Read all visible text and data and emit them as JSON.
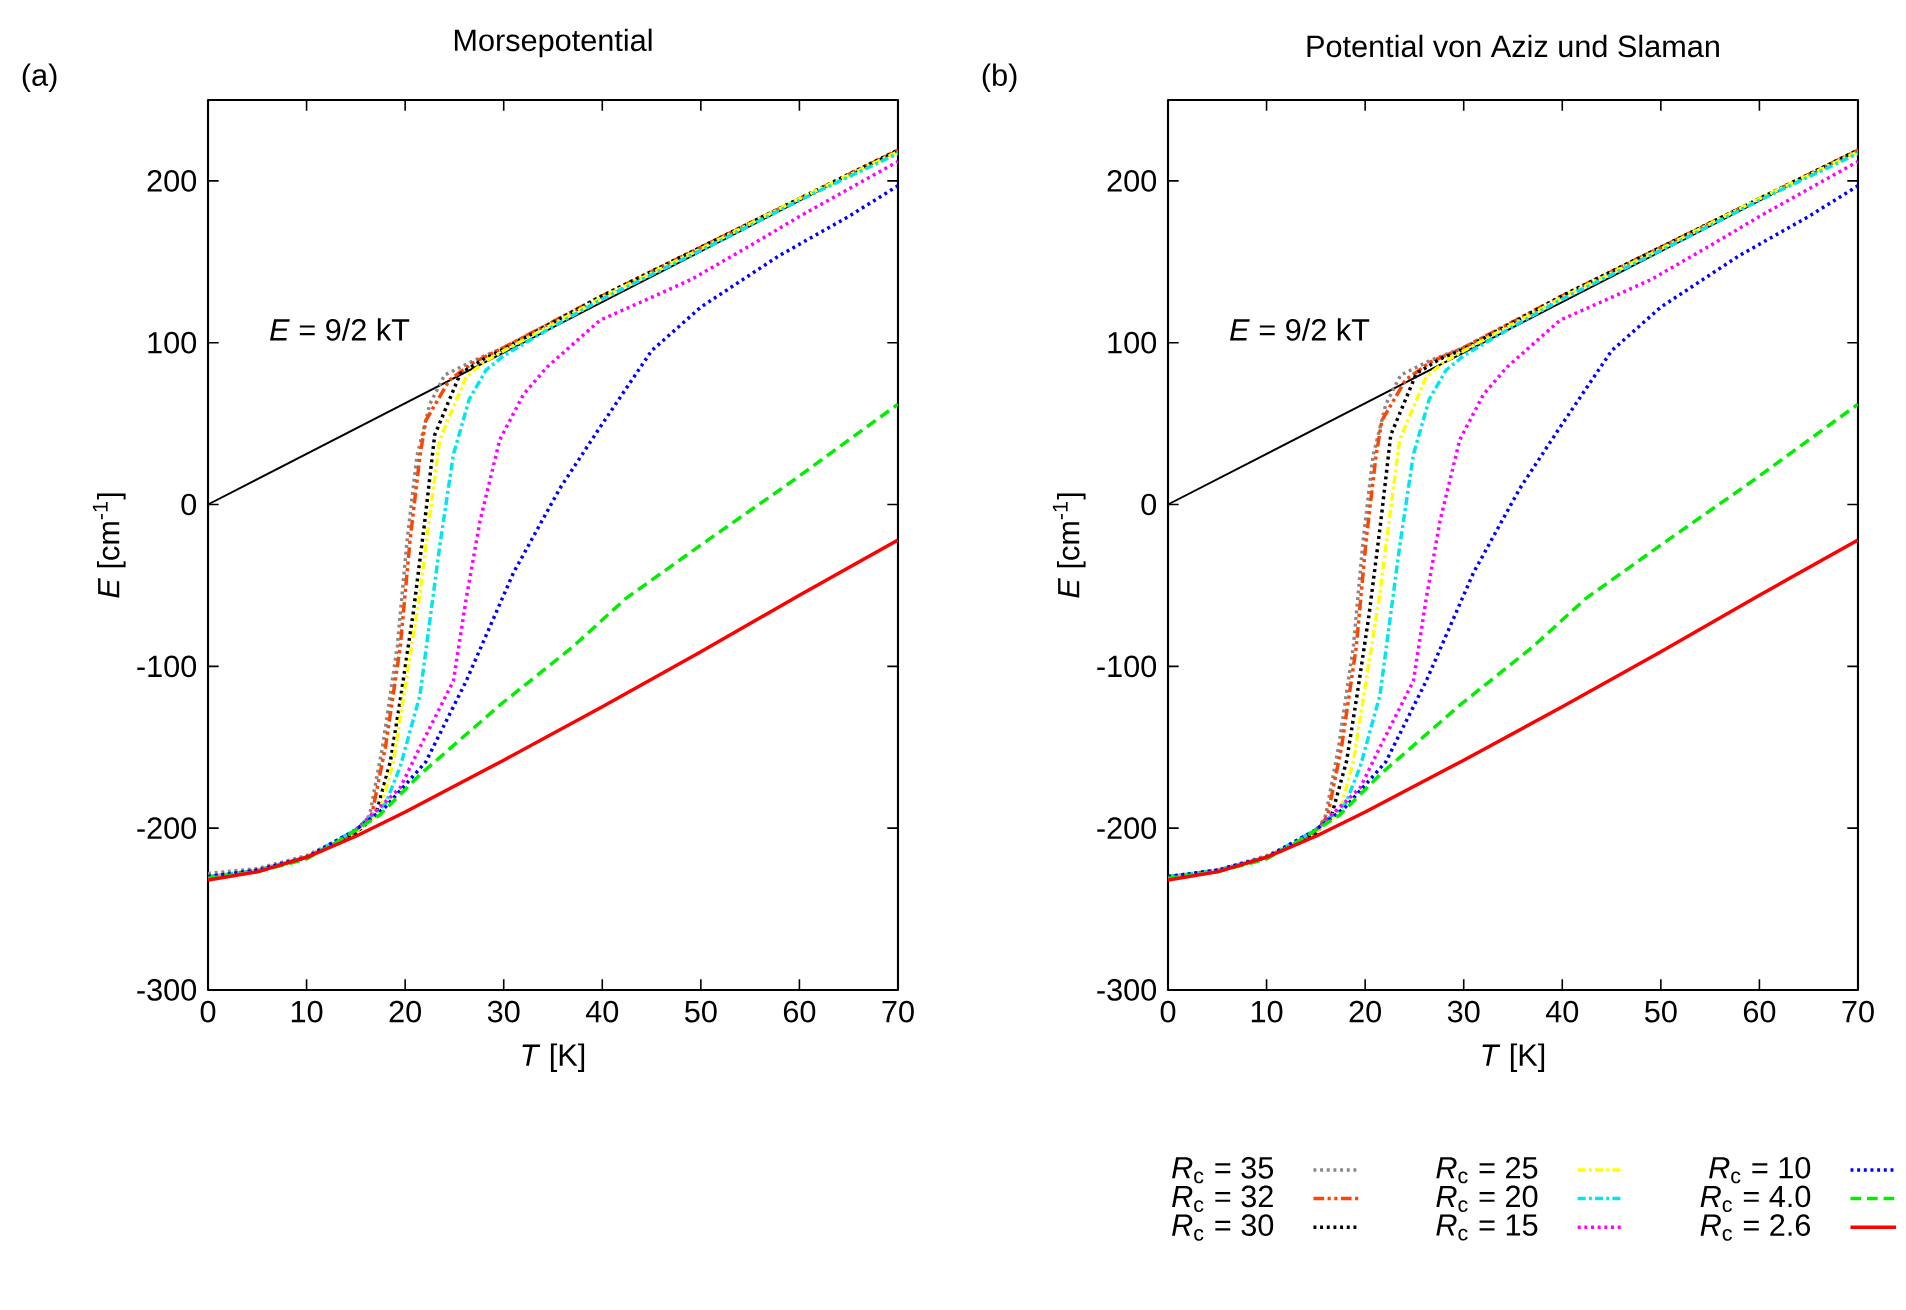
{
  "chart_data": [
    {
      "type": "line",
      "title": "Morsepotential",
      "xlabel": "*T* [K]",
      "ylabel": "*E* [cm$^{-1}$]",
      "xlim": [
        0,
        70
      ],
      "ylim": [
        -300,
        250
      ],
      "xticks": [
        0,
        10,
        20,
        30,
        40,
        50,
        60,
        70
      ],
      "yticks": [
        -300,
        -200,
        -100,
        0,
        100,
        200
      ],
      "annotations": [
        "(a)",
        {
          "text": "*E* = 9/2 kT",
          "x": 20,
          "y": 63
        }
      ],
      "legend": false,
      "grid": false,
      "marker": "none",
      "series": [
        {
          "color": "#000000",
          "line_style": "solid",
          "x": [
            0,
            70
          ],
          "values": [
            0,
            219
          ]
        },
        {
          "color": "#888888",
          "line_style": "dotted",
          "x": [
            0,
            5,
            10,
            15,
            16.4,
            17.7,
            19.2,
            20.2,
            21.2,
            22.5,
            24,
            27,
            30,
            40,
            50,
            60,
            70
          ],
          "values": [
            -228,
            -225,
            -217,
            -202,
            -192,
            -150,
            -88,
            -22,
            30,
            62,
            80,
            89,
            97,
            129,
            159,
            189,
            219
          ]
        },
        {
          "color": "#ff4500",
          "line_style": "dashdotdot",
          "x": [
            0,
            5,
            10,
            15,
            16.6,
            18,
            19.5,
            20.5,
            21.5,
            22.1,
            24.5,
            27,
            30,
            40,
            50,
            60,
            70
          ],
          "values": [
            -230,
            -226,
            -218,
            -203,
            -192,
            -150,
            -88,
            -22,
            30,
            52,
            77,
            88,
            97,
            129,
            159,
            189,
            219
          ]
        },
        {
          "color": "#000000",
          "line_style": "dotted",
          "x": [
            0,
            5,
            10,
            15,
            17,
            18.5,
            19.5,
            20.8,
            22,
            23,
            25.6,
            28,
            30,
            40,
            50,
            60,
            70
          ],
          "values": [
            -230,
            -226,
            -218,
            -203,
            -192,
            -159,
            -121,
            -68,
            -10,
            43,
            81,
            90,
            96,
            129,
            159,
            189,
            219
          ]
        },
        {
          "color": "#ffff00",
          "line_style": "dashdot",
          "x": [
            15,
            17.4,
            18.8,
            20.1,
            21.5,
            22.1,
            23.5,
            26.2,
            28,
            30,
            40,
            50,
            60,
            70
          ],
          "values": [
            -202,
            -190,
            -159,
            -109,
            -55,
            -26,
            40,
            79,
            88,
            95,
            128,
            158,
            189,
            218
          ]
        },
        {
          "color": "#00e5ee",
          "line_style": "dashdot",
          "x": [
            0,
            5,
            10,
            15,
            18,
            19.5,
            21.5,
            23.5,
            24.9,
            26.5,
            28.2,
            30,
            35,
            40,
            50,
            60,
            70
          ],
          "values": [
            -230,
            -226,
            -218,
            -201,
            -185,
            -162,
            -118,
            -26,
            31,
            65,
            83,
            92,
            110,
            127,
            157,
            188,
            217
          ]
        },
        {
          "color": "#ff00ff",
          "line_style": "dotted",
          "x": [
            15,
            19.5,
            21.5,
            24.9,
            26.2,
            27.6,
            29.6,
            32,
            34.4,
            39.8,
            45,
            49,
            55,
            60,
            65,
            70
          ],
          "values": [
            -201,
            -175,
            -150,
            -109,
            -58,
            -10,
            40,
            68,
            85,
            114,
            128,
            139,
            160,
            178,
            195,
            212
          ]
        },
        {
          "color": "#0000ff",
          "line_style": "dotted",
          "x": [
            0,
            5,
            10,
            15,
            18,
            22.1,
            26.2,
            31,
            35.7,
            39.8,
            45,
            50,
            58,
            65,
            70
          ],
          "values": [
            -230,
            -226,
            -218,
            -201,
            -187,
            -159,
            -109,
            -42,
            10,
            48,
            95,
            122,
            154,
            178,
            197
          ]
        },
        {
          "color": "#00ee00",
          "line_style": "dashed",
          "x": [
            0,
            5,
            10,
            12.7,
            17.4,
            21.5,
            29.6,
            37,
            42.4,
            50,
            59.4,
            70
          ],
          "values": [
            -231,
            -227,
            -219,
            -210,
            -192,
            -167,
            -124,
            -88,
            -58,
            -25,
            15,
            62
          ]
        },
        {
          "color": "#ff0000",
          "line_style": "solid",
          "x": [
            0,
            5,
            10,
            15,
            20,
            30,
            40,
            50,
            60,
            70
          ],
          "values": [
            -232,
            -227,
            -218,
            -205,
            -190,
            -158,
            -125,
            -91,
            -56,
            -22
          ]
        }
      ]
    },
    {
      "type": "line",
      "title": "Potential von Aziz und Slaman",
      "xlabel": "*T* [K]",
      "ylabel": "*E* [cm$^{-1}$]",
      "xlim": [
        0,
        70
      ],
      "ylim": [
        -300,
        250
      ],
      "xticks": [
        0,
        10,
        20,
        30,
        40,
        50,
        60,
        70
      ],
      "yticks": [
        -300,
        -200,
        -100,
        0,
        100,
        200
      ],
      "annotations": [
        "(b)",
        {
          "text": "*E* = 9/2 kT",
          "x": 20,
          "y": 63
        }
      ],
      "legend": "bottom",
      "grid": false,
      "marker": "none",
      "series": [
        {
          "color": "#000000",
          "line_style": "solid",
          "x": [
            0,
            70
          ],
          "values": [
            0,
            219
          ]
        },
        {
          "name": "*R*$_{c}$ = 35",
          "color": "#888888",
          "line_style": "dotted",
          "x": [
            0,
            5,
            10,
            15,
            16,
            17.3,
            18.8,
            19.8,
            20.8,
            22.1,
            23.6,
            26.6,
            30,
            40,
            50,
            60,
            70
          ],
          "values": [
            -230,
            -226,
            -217,
            -203,
            -192,
            -150,
            -88,
            -22,
            30,
            62,
            80,
            89,
            97,
            129,
            159,
            189,
            219
          ]
        },
        {
          "name": "*R*$_{c}$ = 32",
          "color": "#ff4500",
          "line_style": "dashdotdot",
          "x": [
            0,
            5,
            10,
            15,
            16.2,
            17.6,
            19.1,
            20.1,
            21.1,
            21.7,
            24.1,
            26.6,
            30,
            40,
            50,
            60,
            70
          ],
          "values": [
            -230,
            -226,
            -218,
            -203,
            -192,
            -150,
            -88,
            -22,
            30,
            52,
            77,
            88,
            97,
            129,
            159,
            189,
            219
          ]
        },
        {
          "name": "*R*$_{c}$ = 30",
          "color": "#000000",
          "line_style": "dotted",
          "x": [
            0,
            5,
            10,
            15,
            16.6,
            18.1,
            19.1,
            20.4,
            21.6,
            22.6,
            25.2,
            27.6,
            30,
            40,
            50,
            60,
            70
          ],
          "values": [
            -230,
            -226,
            -218,
            -203,
            -192,
            -159,
            -121,
            -68,
            -10,
            43,
            81,
            90,
            96,
            129,
            159,
            189,
            219
          ]
        },
        {
          "name": "*R*$_{c}$ = 25",
          "color": "#ffff00",
          "line_style": "dashdot",
          "x": [
            15,
            17.4,
            18.8,
            20.1,
            21.5,
            22.1,
            23.5,
            26.2,
            28,
            30,
            40,
            50,
            60,
            70
          ],
          "values": [
            -202,
            -190,
            -159,
            -109,
            -55,
            -26,
            40,
            79,
            88,
            95,
            128,
            158,
            189,
            218
          ]
        },
        {
          "name": "*R*$_{c}$ = 20",
          "color": "#00e5ee",
          "line_style": "dashdot",
          "x": [
            0,
            5,
            10,
            15,
            18,
            19.5,
            21.5,
            23.5,
            24.9,
            26.5,
            28.2,
            30,
            35,
            40,
            50,
            60,
            70
          ],
          "values": [
            -230,
            -226,
            -218,
            -201,
            -185,
            -162,
            -118,
            -26,
            31,
            65,
            83,
            92,
            110,
            127,
            157,
            188,
            217
          ]
        },
        {
          "name": "*R*$_{c}$ = 15",
          "color": "#ff00ff",
          "line_style": "dotted",
          "x": [
            15,
            19.5,
            21.5,
            24.9,
            26.2,
            27.6,
            29.6,
            32,
            34.4,
            39.8,
            45,
            49,
            55,
            60,
            65,
            70
          ],
          "values": [
            -201,
            -175,
            -150,
            -109,
            -58,
            -10,
            40,
            68,
            85,
            114,
            128,
            139,
            160,
            178,
            195,
            212
          ]
        },
        {
          "name": "*R*$_{c}$ = 10",
          "color": "#0000ff",
          "line_style": "dotted",
          "x": [
            0,
            5,
            10,
            15,
            18,
            22.1,
            26.2,
            31,
            35.7,
            39.8,
            45,
            50,
            58,
            65,
            70
          ],
          "values": [
            -230,
            -226,
            -218,
            -201,
            -187,
            -159,
            -109,
            -42,
            10,
            48,
            95,
            122,
            154,
            178,
            197
          ]
        },
        {
          "name": "*R*$_{c}$ = 4.0",
          "color": "#00ee00",
          "line_style": "dashed",
          "x": [
            0,
            5,
            10,
            12.7,
            17.4,
            21.5,
            29.6,
            37,
            42.4,
            50,
            59.4,
            70
          ],
          "values": [
            -231,
            -227,
            -219,
            -210,
            -192,
            -167,
            -124,
            -88,
            -58,
            -25,
            15,
            62
          ]
        },
        {
          "name": "*R*$_{c}$ = 2.6",
          "color": "#ff0000",
          "line_style": "solid",
          "x": [
            0,
            5,
            10,
            15,
            20,
            30,
            40,
            50,
            60,
            70
          ],
          "values": [
            -232,
            -227,
            -218,
            -205,
            -190,
            -158,
            -125,
            -91,
            -56,
            -22
          ]
        }
      ]
    }
  ]
}
